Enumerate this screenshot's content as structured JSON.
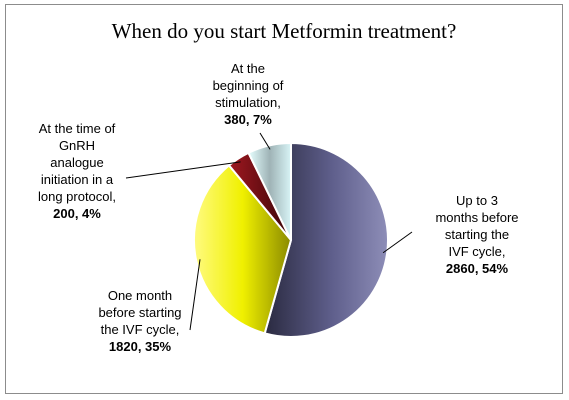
{
  "chart_data": {
    "type": "pie",
    "title": "When do you start Metformin treatment?",
    "slices": [
      {
        "lines": [
          "Up to 3",
          "months before",
          "starting the",
          "IVF cycle,"
        ],
        "value_label": "2860, 54%",
        "value": 2860,
        "percent": 54,
        "color": "#5f5f8c"
      },
      {
        "lines": [
          "One month",
          "before starting",
          "the IVF cycle,"
        ],
        "value_label": "1820, 35%",
        "value": 1820,
        "percent": 35,
        "color": "#e6e600"
      },
      {
        "lines": [
          "At the time of",
          "GnRH",
          "analogue",
          "initiation in a",
          "long protocol,"
        ],
        "value_label": "200, 4%",
        "value": 200,
        "percent": 4,
        "color": "#7a0f14"
      },
      {
        "lines": [
          "At the",
          "beginning of",
          "stimulation,"
        ],
        "value_label": "380, 7%",
        "value": 380,
        "percent": 7,
        "color": "#a9c4c8"
      }
    ],
    "legend": "none",
    "grid": false
  }
}
